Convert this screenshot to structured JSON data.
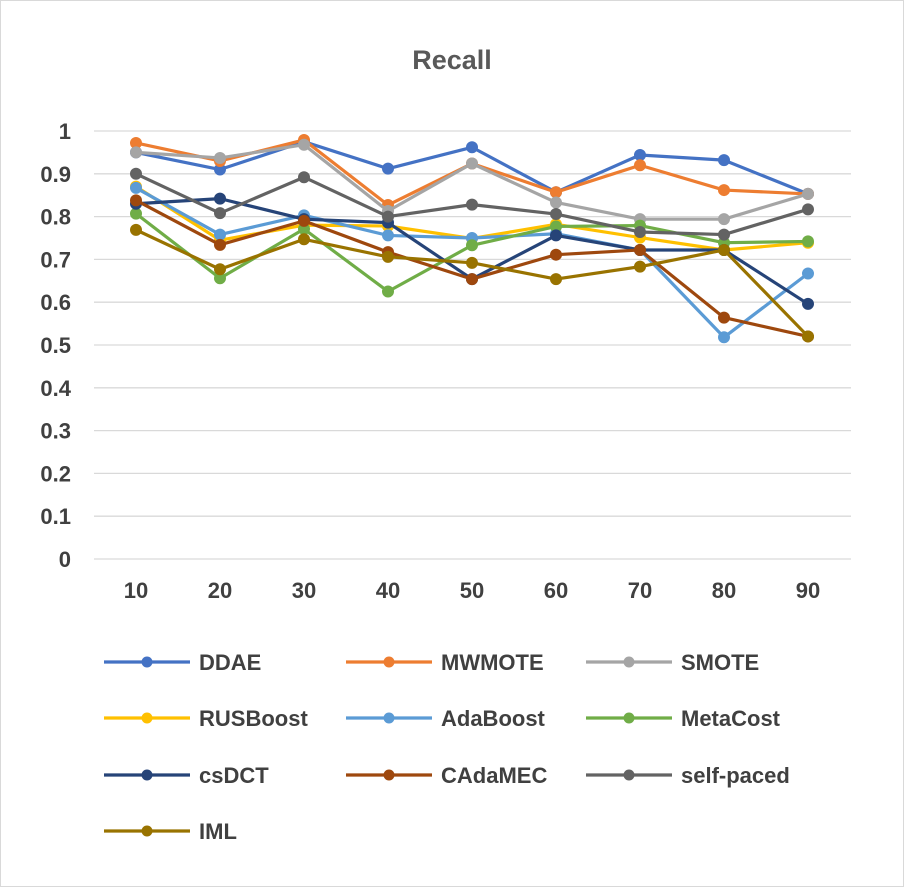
{
  "chart_data": {
    "type": "line",
    "title": "Recall",
    "xlabel": "",
    "ylabel": "",
    "x": [
      10,
      20,
      30,
      40,
      50,
      60,
      70,
      80,
      90
    ],
    "ylim": [
      0,
      1
    ],
    "yticks": [
      "0",
      "0.1",
      "0.2",
      "0.3",
      "0.4",
      "0.5",
      "0.6",
      "0.7",
      "0.8",
      "0.9",
      "1"
    ],
    "grid": true,
    "legend_position": "bottom",
    "series": [
      {
        "name": "DDAE",
        "color": "#4472C4",
        "values": [
          0.95,
          0.91,
          0.975,
          0.912,
          0.962,
          0.857,
          0.944,
          0.932,
          0.853
        ]
      },
      {
        "name": "MWMOTE",
        "color": "#ED7D31",
        "values": [
          0.972,
          0.93,
          0.979,
          0.827,
          0.924,
          0.857,
          0.92,
          0.862,
          0.853
        ]
      },
      {
        "name": "SMOTE",
        "color": "#A5A5A5",
        "values": [
          0.95,
          0.937,
          0.968,
          0.813,
          0.924,
          0.833,
          0.794,
          0.794,
          0.853
        ]
      },
      {
        "name": "RUSBoost",
        "color": "#FFC000",
        "values": [
          0.87,
          0.745,
          0.78,
          0.778,
          0.749,
          0.782,
          0.751,
          0.722,
          0.739
        ]
      },
      {
        "name": "AdaBoost",
        "color": "#5B9BD5",
        "values": [
          0.867,
          0.758,
          0.803,
          0.756,
          0.75,
          0.76,
          0.722,
          0.518,
          0.667
        ]
      },
      {
        "name": "MetaCost",
        "color": "#70AD47",
        "values": [
          0.807,
          0.656,
          0.771,
          0.625,
          0.733,
          0.777,
          0.779,
          0.739,
          0.742
        ]
      },
      {
        "name": "csDCT",
        "color": "#264478",
        "values": [
          0.83,
          0.842,
          0.794,
          0.786,
          0.654,
          0.756,
          0.722,
          0.722,
          0.596
        ]
      },
      {
        "name": "CAdaMEC",
        "color": "#9E480E",
        "values": [
          0.838,
          0.734,
          0.79,
          0.717,
          0.654,
          0.711,
          0.722,
          0.564,
          0.52
        ]
      },
      {
        "name": "self-paced",
        "color": "#636363",
        "values": [
          0.9,
          0.808,
          0.892,
          0.8,
          0.828,
          0.806,
          0.764,
          0.758,
          0.817
        ]
      },
      {
        "name": "IML",
        "color": "#997300",
        "values": [
          0.769,
          0.677,
          0.747,
          0.706,
          0.692,
          0.654,
          0.683,
          0.722,
          0.52
        ]
      }
    ]
  }
}
